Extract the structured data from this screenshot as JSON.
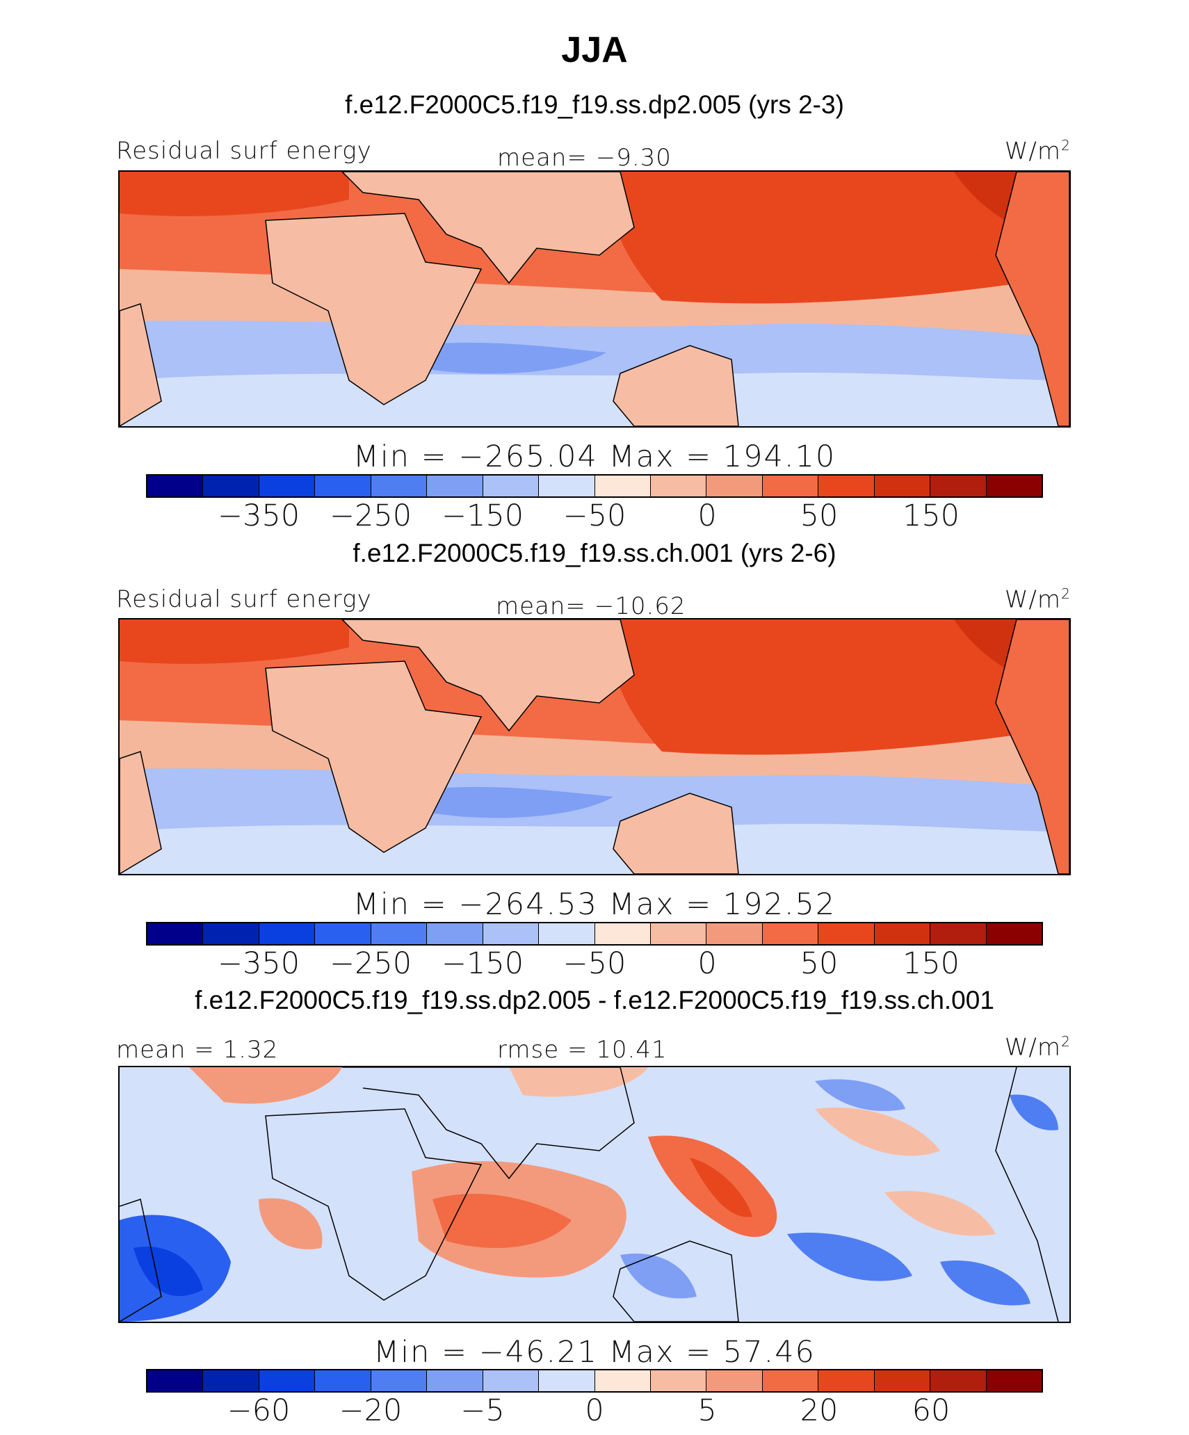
{
  "main_title": "JJA",
  "panels": [
    {
      "case_title": "f.e12.F2000C5.f19_f19.ss.dp2.005 (yrs 2-3)",
      "left_label": "Residual surf energy",
      "center_label": "mean=   −9.30",
      "units": "W/m",
      "units_sup": "2",
      "minmax": "Min  =  −265.04  Max  =  194.10",
      "ticks": [
        "−350",
        "−250",
        "−150",
        "−50",
        "0",
        "50",
        "150"
      ]
    },
    {
      "case_title": "f.e12.F2000C5.f19_f19.ss.ch.001 (yrs 2-6)",
      "left_label": "Residual surf energy",
      "center_label": "mean=  −10.62",
      "units": "W/m",
      "units_sup": "2",
      "minmax": "Min  =  −264.53  Max  =  192.52",
      "ticks": [
        "−350",
        "−250",
        "−150",
        "−50",
        "0",
        "50",
        "150"
      ]
    },
    {
      "case_title": "f.e12.F2000C5.f19_f19.ss.dp2.005 - f.e12.F2000C5.f19_f19.ss.ch.001",
      "left_label": "mean  =    1.32",
      "center_label": "rmse  =   10.41",
      "units": "W/m",
      "units_sup": "2",
      "minmax": "Min  =  −46.21  Max  =   57.46",
      "ticks": [
        "−60",
        "−20",
        "−5",
        "0",
        "5",
        "20",
        "60"
      ]
    }
  ],
  "colorbar_colors": [
    "#00008b",
    "#0022b0",
    "#0a3fe0",
    "#2a60f0",
    "#4f7ef2",
    "#7f9ff5",
    "#abc1f7",
    "#d4e1fb",
    "#fde7d8",
    "#f6bda4",
    "#f49a7c",
    "#f26b45",
    "#e8471e",
    "#d0320f",
    "#b11e0e",
    "#8b0000"
  ]
}
